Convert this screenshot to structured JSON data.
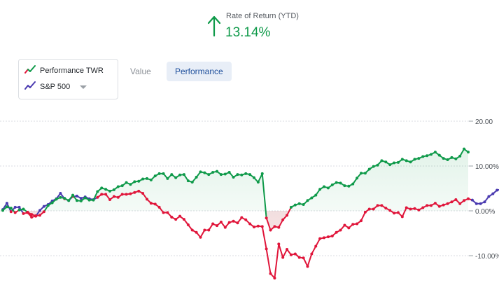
{
  "header": {
    "label": "Rate of Return (YTD)",
    "value": "13.14%",
    "arrow_icon": "arrow-up-icon"
  },
  "legend": {
    "items": [
      {
        "label": "Performance TWR",
        "icon": "trend-line-icon"
      },
      {
        "label": "S&P 500",
        "icon": "trend-line-icon"
      }
    ],
    "dropdown_icon": "caret-down-icon"
  },
  "tabs": [
    {
      "label": "Value",
      "active": false
    },
    {
      "label": "Performance",
      "active": true
    }
  ],
  "colors": {
    "positive": "#0f9a4a",
    "negative": "#e0153a",
    "benchmark": "#4a3ab0",
    "accent": "#1e4f9c"
  },
  "chart_data": {
    "type": "line",
    "ylim": [
      -15,
      20
    ],
    "yticks": [
      {
        "value": 20,
        "label": "20.00"
      },
      {
        "value": 10,
        "label": "10.00%"
      },
      {
        "value": 0,
        "label": "0.00%"
      },
      {
        "value": -10,
        "label": "-10.00%"
      }
    ],
    "grid": true,
    "series": [
      {
        "name": "Performance TWR",
        "values": [
          0.1,
          0.9,
          0.6,
          -0.4,
          0.2,
          0.4,
          -0.3,
          -0.8,
          -1.1,
          -1.0,
          -0.2,
          1.2,
          1.8,
          2.6,
          3.0,
          2.8,
          2.3,
          3.5,
          2.3,
          2.2,
          2.9,
          2.4,
          2.4,
          4.3,
          5.1,
          4.8,
          4.4,
          4.7,
          5.4,
          5.6,
          6.3,
          5.9,
          6.5,
          6.6,
          7.1,
          7.2,
          6.9,
          7.8,
          8.3,
          8.3,
          7.2,
          8.1,
          7.4,
          8.0,
          8.1,
          6.7,
          6.4,
          7.5,
          8.7,
          8.5,
          8.1,
          8.6,
          8.8,
          8.1,
          8.2,
          8.6,
          7.5,
          8.1,
          8.0,
          8.3,
          8.1,
          7.4,
          6.4,
          8.3,
          -1.6,
          -4.3,
          -3.5,
          -3.7,
          -2.0,
          -1.0,
          0.8,
          1.3,
          1.6,
          1.4,
          2.3,
          2.9,
          3.5,
          4.8,
          5.4,
          5.1,
          5.8,
          6.3,
          6.2,
          5.6,
          5.5,
          6.0,
          7.3,
          8.4,
          8.4,
          9.3,
          9.9,
          10.2,
          11.2,
          10.9,
          10.3,
          10.7,
          10.8,
          11.5,
          11.2,
          10.9,
          11.5,
          11.7,
          12.1,
          12.3,
          12.6,
          13.1,
          12.4,
          11.7,
          11.4,
          11.9,
          11.6,
          12.2,
          13.8,
          13.1
        ],
        "color": "#0f9a4a",
        "negative_color": "#e0153a"
      },
      {
        "name": "S&P 500",
        "values": [
          0.3,
          1.7,
          -0.2,
          0.8,
          0.8,
          -0.6,
          -0.4,
          -1.4,
          -1.2,
          0.1,
          1.0,
          1.4,
          2.2,
          2.7,
          3.9,
          2.7,
          2.3,
          3.2,
          3.3,
          2.8,
          3.1,
          2.7,
          2.5,
          3.0,
          3.7,
          3.7,
          2.5,
          3.2,
          3.0,
          3.7,
          3.7,
          3.8,
          4.1,
          4.4,
          3.9,
          2.6,
          1.7,
          1.5,
          0.8,
          -0.4,
          -0.4,
          -1.4,
          -1.9,
          -1.2,
          -1.9,
          -3.1,
          -4.3,
          -4.8,
          -5.9,
          -4.3,
          -4.3,
          -2.9,
          -3.3,
          -2.5,
          -3.7,
          -2.6,
          -2.3,
          -2.7,
          -1.5,
          -2.0,
          -2.9,
          -3.6,
          -3.4,
          -3.5,
          -8.5,
          -14.0,
          -15.0,
          -7.4,
          -10.4,
          -8.6,
          -9.8,
          -9.6,
          -10.4,
          -10.5,
          -12.4,
          -9.6,
          -7.9,
          -6.2,
          -6.0,
          -5.8,
          -5.6,
          -4.8,
          -4.3,
          -3.2,
          -3.8,
          -3.0,
          -2.9,
          -2.2,
          -0.3,
          0.4,
          0.4,
          1.2,
          1.2,
          0.6,
          0.1,
          -0.5,
          -0.4,
          -1.3,
          0.7,
          0.4,
          0.5,
          0.2,
          0.7,
          1.2,
          1.2,
          1.7,
          1.0,
          1.3,
          1.6,
          2.0,
          2.5,
          1.6,
          2.3,
          2.7,
          2.4,
          1.6,
          1.6,
          2.0,
          3.2,
          3.8,
          4.6,
          4.8
        ],
        "color": "#4a3ab0"
      }
    ]
  }
}
